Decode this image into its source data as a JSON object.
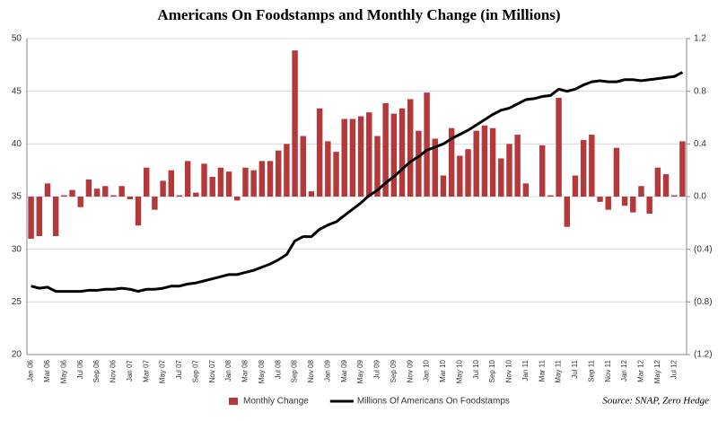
{
  "chart_data": {
    "type": "bar",
    "title": "Americans On Foodstamps and Monthly Change (in Millions)",
    "source": "Source: SNAP, Zero Hedge",
    "categories": [
      "Jan 06",
      null,
      "Mar 06",
      null,
      "May 06",
      null,
      "Jul 06",
      null,
      "Sep 06",
      null,
      "Nov 06",
      null,
      "Jan 07",
      null,
      "Mar 07",
      null,
      "May 07",
      null,
      "Jul 07",
      null,
      "Sep 07",
      null,
      "Nov 07",
      null,
      "Jan 08",
      null,
      "Mar 08",
      null,
      "May 08",
      null,
      "Jul 08",
      null,
      "Sep 08",
      null,
      "Nov 08",
      null,
      "Jan 09",
      null,
      "Mar 09",
      null,
      "May 09",
      null,
      "Jul 09",
      null,
      "Sep 09",
      null,
      "Nov 09",
      null,
      "Jan 10",
      null,
      "Mar 10",
      null,
      "May 10",
      null,
      "Jul 10",
      null,
      "Sep 10",
      null,
      "Nov 10",
      null,
      "Jan 11",
      null,
      "Mar 11",
      null,
      "May 11",
      null,
      "Jul 11",
      null,
      "Sep 11",
      null,
      "Nov 11",
      null,
      "Jan 12",
      null,
      "Mar 12",
      null,
      "May 12",
      null,
      "Jul 12",
      null
    ],
    "series": [
      {
        "name": "Monthly Change",
        "type": "bar",
        "axis": "y2",
        "color": "#b5393b",
        "values": [
          -0.32,
          -0.3,
          0.1,
          -0.3,
          0.01,
          0.05,
          -0.08,
          0.13,
          0.06,
          0.08,
          0.01,
          0.08,
          -0.02,
          -0.22,
          0.22,
          -0.1,
          0.12,
          0.2,
          0.01,
          0.27,
          0.03,
          0.25,
          0.15,
          0.22,
          0.19,
          -0.03,
          0.22,
          0.2,
          0.27,
          0.27,
          0.35,
          0.4,
          1.11,
          0.46,
          0.04,
          0.67,
          0.42,
          0.34,
          0.59,
          0.59,
          0.61,
          0.64,
          0.46,
          0.71,
          0.63,
          0.67,
          0.74,
          0.5,
          0.79,
          0.44,
          0.16,
          0.52,
          0.31,
          0.36,
          0.5,
          0.54,
          0.52,
          0.29,
          0.4,
          0.47,
          0.1,
          0.0,
          0.39,
          0.01,
          0.75,
          -0.23,
          0.16,
          0.43,
          0.47,
          -0.04,
          -0.1,
          0.37,
          -0.07,
          -0.12,
          0.08,
          -0.13,
          0.22,
          0.17,
          0.01,
          0.42
        ]
      },
      {
        "name": "Millions Of Americans On Foodstamps",
        "type": "line",
        "color": "#000000",
        "values": [
          26.5,
          26.3,
          26.4,
          26.0,
          26.0,
          26.0,
          26.0,
          26.1,
          26.1,
          26.2,
          26.2,
          26.3,
          26.2,
          26.0,
          26.2,
          26.2,
          26.3,
          26.5,
          26.5,
          26.7,
          26.8,
          27.0,
          27.2,
          27.4,
          27.6,
          27.6,
          27.8,
          28.0,
          28.3,
          28.6,
          29.0,
          29.5,
          30.8,
          31.2,
          31.2,
          31.9,
          32.3,
          32.6,
          33.2,
          33.8,
          34.4,
          35.1,
          35.6,
          36.3,
          36.9,
          37.6,
          38.3,
          38.8,
          39.4,
          39.7,
          40.0,
          40.5,
          40.9,
          41.3,
          41.8,
          42.3,
          42.8,
          43.2,
          43.4,
          43.8,
          44.2,
          44.3,
          44.5,
          44.6,
          45.2,
          45.0,
          45.2,
          45.6,
          45.9,
          46.0,
          45.9,
          45.9,
          46.1,
          46.1,
          46.0,
          46.1,
          46.2,
          46.3,
          46.4,
          46.8
        ]
      }
    ],
    "ylim": [
      20,
      50
    ],
    "yticks": [
      20,
      25,
      30,
      35,
      40,
      45,
      50
    ],
    "y2lim": [
      -1.2,
      1.2
    ],
    "y2ticks": [
      {
        "value": -1.2,
        "label": "(1.2)"
      },
      {
        "value": -0.8,
        "label": "(0.8)"
      },
      {
        "value": -0.4,
        "label": "(0.4)"
      },
      {
        "value": 0,
        "label": "0.0"
      },
      0.4,
      0.8,
      1.2
    ],
    "grid": true
  }
}
